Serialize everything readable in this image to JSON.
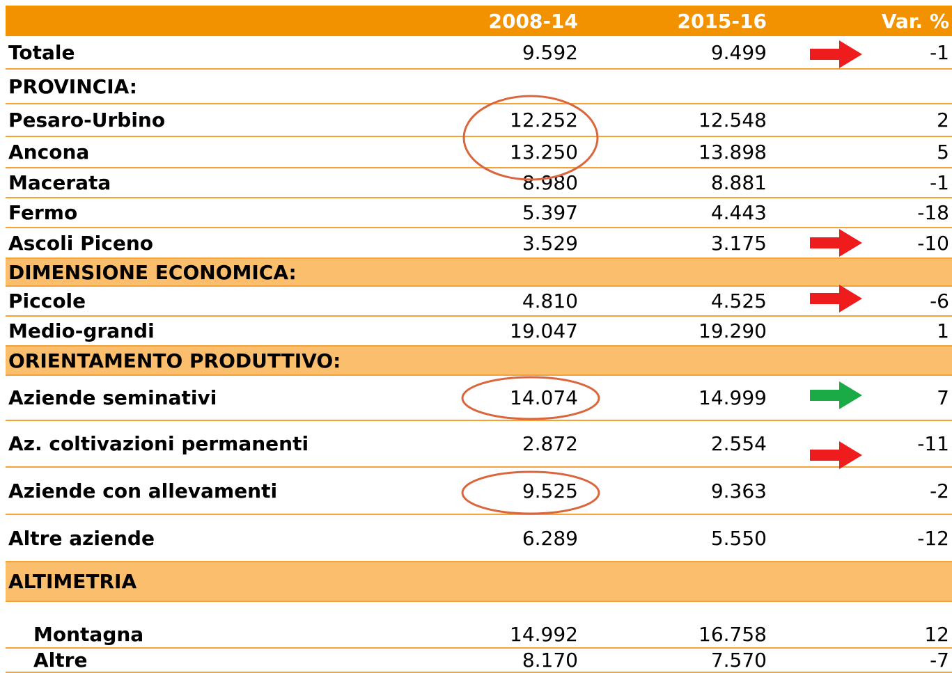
{
  "table": {
    "header": [
      "",
      "2008-14",
      "2015-16",
      "Var. %"
    ],
    "rows": [
      [
        "Totale",
        "9.592",
        "9.499",
        "-1"
      ],
      [
        "PROVINCIA:"
      ],
      [
        "Pesaro-Urbino",
        "12.252",
        "12.548",
        "2"
      ],
      [
        "Ancona",
        "13.250",
        "13.898",
        "5"
      ],
      [
        "Macerata",
        "8.980",
        "8.881",
        "-1"
      ],
      [
        "Fermo",
        "5.397",
        "4.443",
        "-18"
      ],
      [
        "Ascoli Piceno",
        "3.529",
        "3.175",
        "-10"
      ],
      [
        "DIMENSIONE ECONOMICA:"
      ],
      [
        "Piccole",
        "4.810",
        "4.525",
        "-6"
      ],
      [
        "Medio-grandi",
        "19.047",
        "19.290",
        "1"
      ],
      [
        "ORIENTAMENTO PRODUTTIVO:"
      ],
      [
        "Aziende seminativi",
        "14.074",
        "14.999",
        "7"
      ],
      [
        "Az. coltivazioni permanenti",
        "2.872",
        "2.554",
        "-11"
      ],
      [
        "Aziende con allevamenti",
        "9.525",
        "9.363",
        "-2"
      ],
      [
        "Altre aziende",
        "6.289",
        "5.550",
        "-12"
      ],
      [
        "ALTIMETRIA"
      ],
      [
        "Montagna",
        "14.992",
        "16.758",
        "12"
      ],
      [
        "Altre",
        "8.170",
        "7.570",
        "-7"
      ]
    ]
  }
}
